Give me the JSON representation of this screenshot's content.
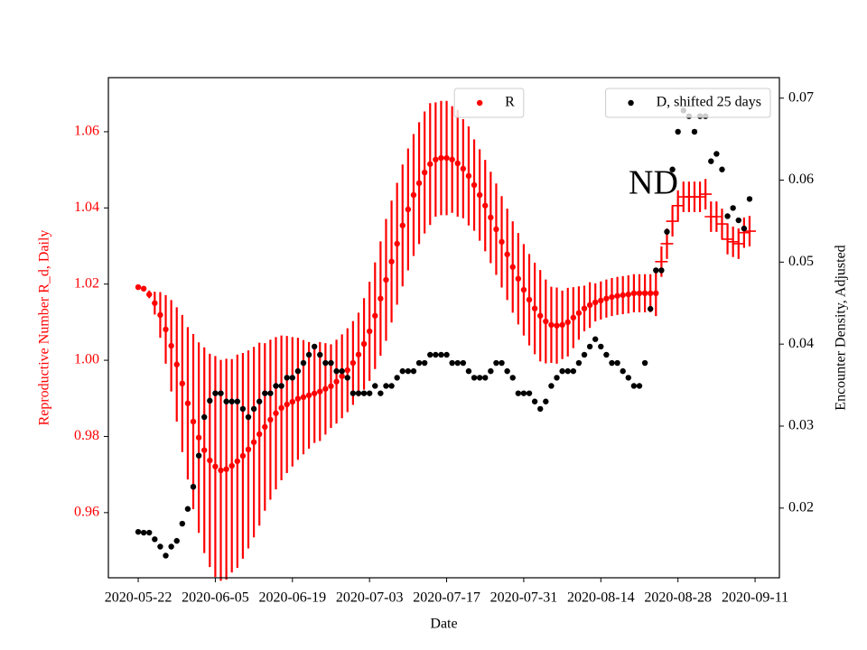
{
  "chart_data": {
    "type": "errorbar_scatter",
    "xlabel": "Date",
    "ylabel": "Reproductive Number R_d, Daily",
    "y2label": "Encounter Density, Adjusted",
    "annotation": "ND",
    "x": [
      "2020-05-22",
      "2020-05-23",
      "2020-05-24",
      "2020-05-25",
      "2020-05-26",
      "2020-05-27",
      "2020-05-28",
      "2020-05-29",
      "2020-05-30",
      "2020-05-31",
      "2020-06-01",
      "2020-06-02",
      "2020-06-03",
      "2020-06-04",
      "2020-06-05",
      "2020-06-06",
      "2020-06-07",
      "2020-06-08",
      "2020-06-09",
      "2020-06-10",
      "2020-06-11",
      "2020-06-12",
      "2020-06-13",
      "2020-06-14",
      "2020-06-15",
      "2020-06-16",
      "2020-06-17",
      "2020-06-18",
      "2020-06-19",
      "2020-06-20",
      "2020-06-21",
      "2020-06-22",
      "2020-06-23",
      "2020-06-24",
      "2020-06-25",
      "2020-06-26",
      "2020-06-27",
      "2020-06-28",
      "2020-06-29",
      "2020-06-30",
      "2020-07-01",
      "2020-07-02",
      "2020-07-03",
      "2020-07-04",
      "2020-07-05",
      "2020-07-06",
      "2020-07-07",
      "2020-07-08",
      "2020-07-09",
      "2020-07-10",
      "2020-07-11",
      "2020-07-12",
      "2020-07-13",
      "2020-07-14",
      "2020-07-15",
      "2020-07-16",
      "2020-07-17",
      "2020-07-18",
      "2020-07-19",
      "2020-07-20",
      "2020-07-21",
      "2020-07-22",
      "2020-07-23",
      "2020-07-24",
      "2020-07-25",
      "2020-07-26",
      "2020-07-27",
      "2020-07-28",
      "2020-07-29",
      "2020-07-30",
      "2020-07-31",
      "2020-08-01",
      "2020-08-02",
      "2020-08-03",
      "2020-08-04",
      "2020-08-05",
      "2020-08-06",
      "2020-08-07",
      "2020-08-08",
      "2020-08-09",
      "2020-08-10",
      "2020-08-11",
      "2020-08-12",
      "2020-08-13",
      "2020-08-14",
      "2020-08-15",
      "2020-08-16",
      "2020-08-17",
      "2020-08-18",
      "2020-08-19",
      "2020-08-20",
      "2020-08-21",
      "2020-08-22",
      "2020-08-23",
      "2020-08-24",
      "2020-08-25",
      "2020-08-26",
      "2020-08-27",
      "2020-08-28",
      "2020-08-29",
      "2020-08-30",
      "2020-08-31",
      "2020-09-01",
      "2020-09-02",
      "2020-09-03",
      "2020-09-04",
      "2020-09-05",
      "2020-09-06",
      "2020-09-07",
      "2020-09-08",
      "2020-09-09",
      "2020-09-10"
    ],
    "series": [
      {
        "name": "R",
        "color": "#ff0000",
        "marker": "dot",
        "legend": "upper center",
        "values": [
          1.0192,
          1.0188,
          1.0173,
          1.015,
          1.0119,
          1.0081,
          1.0038,
          0.9989,
          0.9939,
          0.9887,
          0.9839,
          0.9797,
          0.9764,
          0.9737,
          0.9721,
          0.9711,
          0.9714,
          0.9723,
          0.9735,
          0.9749,
          0.9766,
          0.9785,
          0.9806,
          0.9825,
          0.9844,
          0.9861,
          0.9875,
          0.9884,
          0.9891,
          0.9899,
          0.9903,
          0.9908,
          0.9913,
          0.9918,
          0.9925,
          0.9932,
          0.9944,
          0.9958,
          0.9974,
          0.9993,
          1.0015,
          1.0043,
          1.0076,
          1.0117,
          1.0162,
          1.0211,
          1.0259,
          1.0306,
          1.0354,
          1.0396,
          1.0434,
          1.0465,
          1.0493,
          1.0515,
          1.0527,
          1.0531,
          1.0531,
          1.0527,
          1.0517,
          1.0503,
          1.0484,
          1.046,
          1.0434,
          1.0406,
          1.0375,
          1.0344,
          1.0311,
          1.0278,
          1.0245,
          1.0214,
          1.0185,
          1.0159,
          1.0136,
          1.0117,
          1.0102,
          1.0093,
          1.0091,
          1.0093,
          1.01,
          1.0112,
          1.0124,
          1.0136,
          1.0145,
          1.0152,
          1.0157,
          1.0162,
          1.0166,
          1.0169,
          1.0171,
          1.0173,
          1.0176,
          1.0176,
          1.0176,
          1.0176,
          1.0176,
          null,
          null,
          null,
          null,
          null,
          null,
          null,
          null,
          null,
          null,
          null,
          null,
          null,
          null,
          null,
          null,
          null
        ],
        "errors": [
          0,
          0,
          0.001,
          0.003,
          0.006,
          0.009,
          0.012,
          0.015,
          0.018,
          0.02,
          0.023,
          0.025,
          0.027,
          0.028,
          0.029,
          0.029,
          0.029,
          0.028,
          0.028,
          0.027,
          0.026,
          0.025,
          0.024,
          0.022,
          0.021,
          0.02,
          0.019,
          0.018,
          0.017,
          0.016,
          0.015,
          0.014,
          0.013,
          0.013,
          0.012,
          0.011,
          0.011,
          0.011,
          0.011,
          0.011,
          0.011,
          0.012,
          0.013,
          0.014,
          0.015,
          0.016,
          0.016,
          0.016,
          0.016,
          0.016,
          0.016,
          0.016,
          0.016,
          0.016,
          0.015,
          0.015,
          0.015,
          0.014,
          0.014,
          0.013,
          0.013,
          0.012,
          0.012,
          0.012,
          0.012,
          0.012,
          0.012,
          0.012,
          0.012,
          0.012,
          0.012,
          0.012,
          0.012,
          0.012,
          0.011,
          0.01,
          0.01,
          0.009,
          0.009,
          0.008,
          0.007,
          0.006,
          0.006,
          0.005,
          0.005,
          0.005,
          0.005,
          0.005,
          0.005,
          0.005,
          0.005,
          0.005,
          0.005,
          0.005,
          0.006,
          null,
          null,
          null,
          null,
          null,
          null,
          null,
          null,
          null,
          null,
          null,
          null,
          null,
          null,
          null,
          null,
          null
        ]
      },
      {
        "color": "#ff0000",
        "marker": "plus",
        "values": [
          null,
          null,
          null,
          null,
          null,
          null,
          null,
          null,
          null,
          null,
          null,
          null,
          null,
          null,
          null,
          null,
          null,
          null,
          null,
          null,
          null,
          null,
          null,
          null,
          null,
          null,
          null,
          null,
          null,
          null,
          null,
          null,
          null,
          null,
          null,
          null,
          null,
          null,
          null,
          null,
          null,
          null,
          null,
          null,
          null,
          null,
          null,
          null,
          null,
          null,
          null,
          null,
          null,
          null,
          null,
          null,
          null,
          null,
          null,
          null,
          null,
          null,
          null,
          null,
          null,
          null,
          null,
          null,
          null,
          null,
          null,
          null,
          null,
          null,
          null,
          null,
          null,
          null,
          null,
          null,
          null,
          null,
          null,
          null,
          null,
          null,
          null,
          null,
          null,
          null,
          null,
          null,
          null,
          null,
          null,
          1.0259,
          1.0306,
          1.0365,
          1.0406,
          1.0429,
          1.0429,
          1.0429,
          1.0429,
          1.0436,
          1.0377,
          1.0377,
          1.0358,
          1.0318,
          1.0311,
          1.0306,
          1.0335,
          1.0339
        ],
        "errors": [
          null,
          null,
          null,
          null,
          null,
          null,
          null,
          null,
          null,
          null,
          null,
          null,
          null,
          null,
          null,
          null,
          null,
          null,
          null,
          null,
          null,
          null,
          null,
          null,
          null,
          null,
          null,
          null,
          null,
          null,
          null,
          null,
          null,
          null,
          null,
          null,
          null,
          null,
          null,
          null,
          null,
          null,
          null,
          null,
          null,
          null,
          null,
          null,
          null,
          null,
          null,
          null,
          null,
          null,
          null,
          null,
          null,
          null,
          null,
          null,
          null,
          null,
          null,
          null,
          null,
          null,
          null,
          null,
          null,
          null,
          null,
          null,
          null,
          null,
          null,
          null,
          null,
          null,
          null,
          null,
          null,
          null,
          null,
          null,
          null,
          null,
          null,
          null,
          null,
          null,
          null,
          null,
          null,
          null,
          null,
          0.004,
          0.004,
          0.004,
          0.004,
          0.004,
          0.004,
          0.004,
          0.004,
          0.004,
          0.004,
          0.004,
          0.004,
          0.004,
          0.004,
          0.004,
          0.004,
          0.004
        ]
      },
      {
        "name": "D, shifted 25 days",
        "color": "#000000",
        "marker": "dot",
        "axis": "y2",
        "legend": "upper right",
        "values": [
          0.0171,
          0.017,
          0.017,
          0.0162,
          0.0153,
          0.0142,
          0.0153,
          0.016,
          0.0181,
          0.0199,
          0.0226,
          0.0264,
          0.0311,
          0.0331,
          0.034,
          0.034,
          0.033,
          0.033,
          0.033,
          0.0321,
          0.0311,
          0.0321,
          0.033,
          0.034,
          0.034,
          0.0349,
          0.0349,
          0.0359,
          0.0359,
          0.0367,
          0.0377,
          0.0387,
          0.0397,
          0.0387,
          0.0377,
          0.0377,
          0.0367,
          0.0367,
          0.0359,
          0.034,
          0.034,
          0.034,
          0.034,
          0.0349,
          0.034,
          0.0349,
          0.0349,
          0.0359,
          0.0367,
          0.0367,
          0.0367,
          0.0377,
          0.0377,
          0.0387,
          0.0387,
          0.0387,
          0.0387,
          0.0377,
          0.0377,
          0.0377,
          0.0367,
          0.0359,
          0.0359,
          0.0359,
          0.0367,
          0.0377,
          0.0377,
          0.0367,
          0.0359,
          0.034,
          0.034,
          0.034,
          0.033,
          0.0321,
          0.033,
          0.0349,
          0.0359,
          0.0367,
          0.0367,
          0.0367,
          0.0377,
          0.0387,
          0.0397,
          0.0406,
          0.0397,
          0.0387,
          0.0377,
          0.0377,
          0.0367,
          0.0359,
          0.0349,
          0.0349,
          0.0377,
          0.0443,
          0.049,
          0.049,
          0.0537,
          0.0613,
          0.0659,
          0.0685,
          0.0678,
          0.0659,
          0.0678,
          0.0678,
          0.0623,
          0.0632,
          0.0613,
          0.0556,
          0.0566,
          0.0551,
          0.0541,
          0.0577
        ]
      }
    ],
    "xlim": [
      "2020-05-16T14:00:00Z",
      "2020-09-15T10:00:00Z"
    ],
    "xticks": [
      "2020-05-22",
      "2020-06-05",
      "2020-06-19",
      "2020-07-03",
      "2020-07-17",
      "2020-07-31",
      "2020-08-14",
      "2020-08-28",
      "2020-09-11"
    ],
    "ylim": [
      0.9429,
      1.0742
    ],
    "yticks": [
      0.96,
      0.98,
      {
        "value": 1,
        "label": "1.00"
      },
      1.02,
      1.04,
      1.06
    ],
    "y2lim": [
      0.0115,
      0.0725
    ],
    "y2ticks": [
      0.02,
      0.03,
      0.04,
      0.05,
      0.06,
      0.07
    ],
    "ylabel_color": "#ff0000"
  }
}
